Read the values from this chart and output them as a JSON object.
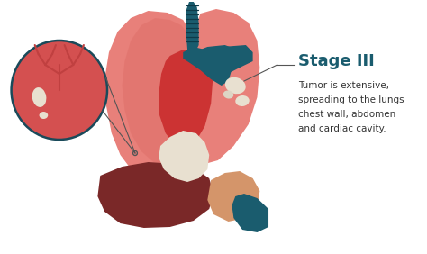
{
  "background_color": "#ffffff",
  "title": "Stage III",
  "title_color": "#1a5c6e",
  "description_lines": [
    "Tumor is extensive,",
    "spreading to the lungs",
    "chest wall, abdomen",
    "and cardiac cavity."
  ],
  "desc_color": "#333333",
  "lung_color": "#e8807a",
  "lung_light_color": "#eda09a",
  "lung_dark_color": "#d45c55",
  "heart_color": "#cc3333",
  "aorta_color": "#1a5c6e",
  "trachea_color": "#1a5c6e",
  "liver_color": "#7a2828",
  "stomach_color": "#d4956a",
  "tumor_color": "#e8e0d0",
  "tumor2_color": "#ddd5c5",
  "circle_bg": "#d45050",
  "circle_border": "#1a4a5a",
  "line_color": "#555555",
  "zoom_vessel_color": "#c04040",
  "white_blob": "#e8e0d0"
}
